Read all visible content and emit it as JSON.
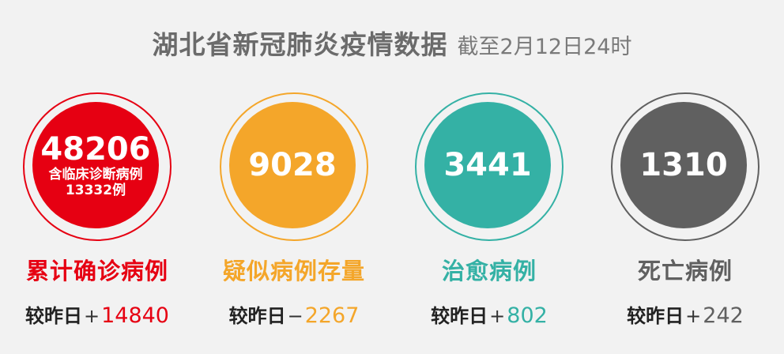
{
  "header": {
    "title": "湖北省新冠肺炎疫情数据",
    "subtitle": "截至2月12日24时"
  },
  "cards": [
    {
      "value": "48206",
      "note_line1": "含临床诊断病例",
      "note_line2": "13332例",
      "label": "累计确诊病例",
      "delta_prefix": "较昨日",
      "delta_sign": "+",
      "delta_value": "14840",
      "color": "#e60012"
    },
    {
      "value": "9028",
      "label": "疑似病例存量",
      "delta_prefix": "较昨日",
      "delta_sign": "−",
      "delta_value": "2267",
      "color": "#f4a62a"
    },
    {
      "value": "3441",
      "label": "治愈病例",
      "delta_prefix": "较昨日",
      "delta_sign": "+",
      "delta_value": "802",
      "color": "#34b1a5"
    },
    {
      "value": "1310",
      "label": "死亡病例",
      "delta_prefix": "较昨日",
      "delta_sign": "+",
      "delta_value": "242",
      "color": "#606060"
    }
  ]
}
